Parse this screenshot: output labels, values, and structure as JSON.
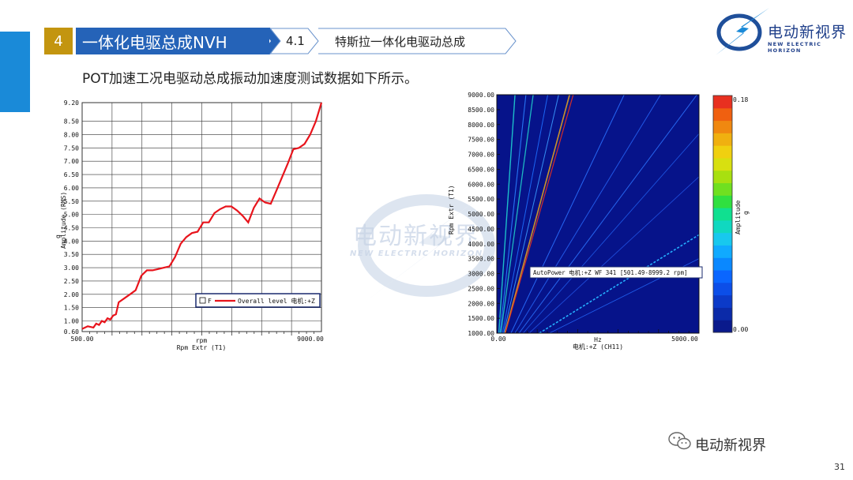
{
  "header": {
    "section_number": "4",
    "section_title": "一体化电驱总成NVH",
    "sub_number": "4.1",
    "sub_title": "特斯拉一体化电驱动总成"
  },
  "description": "POT加速工况电驱动总成振动加速度测试数据如下所示。",
  "logo": {
    "text": "电动新视界",
    "subtext": "NEW ELECTRIC HORIZON"
  },
  "watermark": {
    "text": "电动新视界",
    "subtext": "NEW ELECTRIC HORIZON"
  },
  "footer": {
    "brand": "电动新视界",
    "page": "31"
  },
  "chart_data": [
    {
      "type": "line",
      "ylabel_unit": "g",
      "ylabel": "Amplitude (RMS)",
      "xlabel_unit": "rpm",
      "xlabel": "Rpm Extr (T1)",
      "x_ticks": [
        "500.00",
        "9000.00"
      ],
      "y_ticks": [
        "0.60",
        "1.00",
        "1.50",
        "2.00",
        "2.50",
        "3.00",
        "3.50",
        "4.00",
        "4.50",
        "5.00",
        "5.50",
        "6.00",
        "6.50",
        "7.00",
        "7.50",
        "8.00",
        "8.50",
        "9.20"
      ],
      "xlim": [
        500,
        9000
      ],
      "ylim": [
        0.6,
        9.2
      ],
      "grid": true,
      "legend": {
        "position": "bottom-right",
        "box_label": "F",
        "entry": "Overall level 电机:+Z"
      },
      "series": [
        {
          "name": "Overall level 电机:+Z",
          "color": "#e8141c",
          "x": [
            500,
            700,
            900,
            1000,
            1100,
            1200,
            1300,
            1400,
            1500,
            1600,
            1700,
            1800,
            2000,
            2200,
            2400,
            2600,
            2800,
            3000,
            3200,
            3400,
            3600,
            3800,
            4000,
            4200,
            4400,
            4600,
            4800,
            5000,
            5200,
            5400,
            5600,
            5800,
            6000,
            6200,
            6400,
            6600,
            6800,
            7000,
            7200,
            7400,
            7600,
            7800,
            8000,
            8200,
            8400,
            8600,
            8800,
            9000
          ],
          "y": [
            0.7,
            0.8,
            0.75,
            0.9,
            0.85,
            1.0,
            0.95,
            1.1,
            1.05,
            1.2,
            1.25,
            1.7,
            1.85,
            2.0,
            2.15,
            2.7,
            2.9,
            2.9,
            2.95,
            3.0,
            3.05,
            3.4,
            3.9,
            4.15,
            4.3,
            4.35,
            4.7,
            4.7,
            5.05,
            5.2,
            5.3,
            5.3,
            5.15,
            4.95,
            4.7,
            5.25,
            5.6,
            5.45,
            5.4,
            5.9,
            6.4,
            6.9,
            7.45,
            7.5,
            7.65,
            8.0,
            8.5,
            9.2
          ]
        }
      ]
    },
    {
      "type": "heatmap",
      "ylabel": "Rpm Extr (T1)",
      "xlabel_unit": "Hz",
      "xlabel": "电机:+Z (CH11)",
      "x_ticks": [
        "0.00",
        "5000.00"
      ],
      "y_ticks": [
        "1000.00",
        "1500.00",
        "2000.00",
        "2500.00",
        "3000.00",
        "3500.00",
        "4000.00",
        "4500.00",
        "5000.00",
        "5500.00",
        "6000.00",
        "6500.00",
        "7000.00",
        "7500.00",
        "8000.00",
        "8500.00",
        "9000.00"
      ],
      "xlim": [
        0,
        5000
      ],
      "ylim": [
        1000,
        9000
      ],
      "colorbar": {
        "label": "Amplitude",
        "unit": "g",
        "max": "0.18",
        "min": "0.00"
      },
      "annotation": "AutoPower 电机:+Z WF 341 [501.49-8999.2 rpm]",
      "background_color": "#06138a"
    }
  ]
}
